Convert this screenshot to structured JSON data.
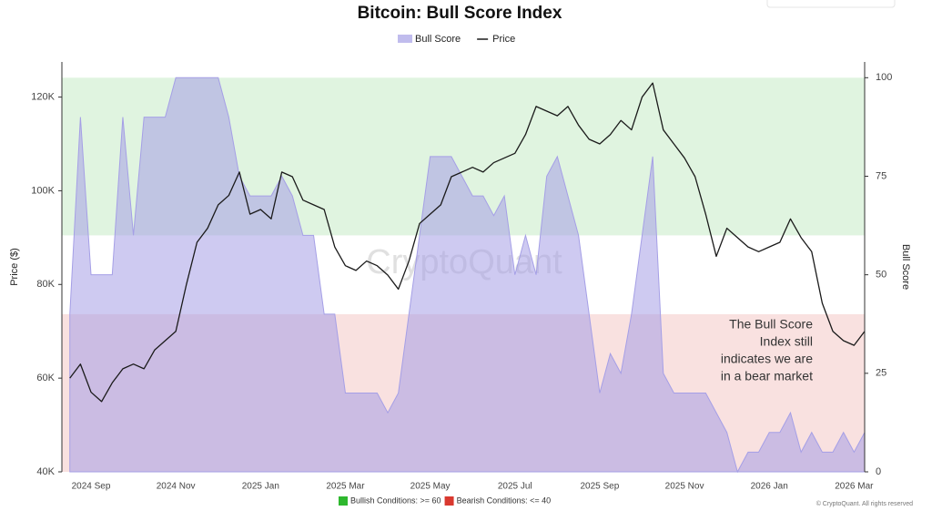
{
  "chart_data": {
    "type": "combo",
    "title": "Bitcoin: Bull Score Index",
    "ylabel": "Price ($)",
    "y2label": "Bull Score",
    "watermark": "CryptoQuant",
    "credit": "© CryptoQuant. All rights reserved",
    "annotation": [
      "The Bull Score",
      "Index still",
      "indicates we are",
      "in a bear market"
    ],
    "categories": [
      null,
      null,
      "2024 Sep",
      null,
      null,
      null,
      null,
      null,
      null,
      null,
      "2024 Nov",
      null,
      null,
      null,
      null,
      null,
      null,
      null,
      "2025 Jan",
      null,
      null,
      null,
      null,
      null,
      null,
      null,
      "2025 Mar",
      null,
      null,
      null,
      null,
      null,
      null,
      null,
      "2025 May",
      null,
      null,
      null,
      null,
      null,
      null,
      null,
      "2025 Jul",
      null,
      null,
      null,
      null,
      null,
      null,
      null,
      "2025 Sep",
      null,
      null,
      null,
      null,
      null,
      null,
      null,
      "2025 Nov",
      null,
      null,
      null,
      null,
      null,
      null,
      null,
      "2026 Jan",
      null,
      null,
      null,
      null,
      null,
      null,
      null,
      "2026 Mar",
      null
    ],
    "series": [
      {
        "name": "Bull Score",
        "type": "area",
        "axis": "y2",
        "color": "#a59fe6",
        "values": [
          40,
          90,
          50,
          50,
          50,
          90,
          60,
          90,
          90,
          90,
          100,
          100,
          100,
          100,
          100,
          90,
          75,
          70,
          70,
          70,
          75,
          70,
          60,
          60,
          40,
          40,
          20,
          20,
          20,
          20,
          15,
          20,
          40,
          60,
          80,
          80,
          80,
          75,
          70,
          70,
          65,
          70,
          50,
          60,
          50,
          75,
          80,
          70,
          60,
          40,
          20,
          30,
          25,
          40,
          60,
          80,
          25,
          20,
          20,
          20,
          20,
          15,
          10,
          0,
          5,
          5,
          10,
          10,
          15,
          5,
          10,
          5,
          5,
          10,
          5,
          10
        ]
      },
      {
        "name": "Price",
        "type": "line",
        "color": "#1a1a1a",
        "values": [
          60000,
          63000,
          57000,
          55000,
          59000,
          62000,
          63000,
          62000,
          66000,
          68000,
          70000,
          80000,
          89000,
          92000,
          97000,
          99000,
          104000,
          95000,
          96000,
          94000,
          104000,
          103000,
          98000,
          97000,
          96000,
          88000,
          84000,
          83000,
          85000,
          84000,
          82000,
          79000,
          85000,
          93000,
          95000,
          97000,
          103000,
          104000,
          105000,
          104000,
          106000,
          107000,
          108000,
          112000,
          118000,
          117000,
          116000,
          118000,
          114000,
          111000,
          110000,
          112000,
          115000,
          113000,
          120000,
          123000,
          113000,
          110000,
          107000,
          103000,
          95000,
          86000,
          92000,
          90000,
          88000,
          87000,
          88000,
          89000,
          94000,
          90000,
          87000,
          76000,
          70000,
          68000,
          67000,
          70000
        ]
      }
    ],
    "zones": [
      {
        "label": "Bullish Conditions: >= 60",
        "min": 60,
        "max": 100,
        "color": "#2eb82e"
      },
      {
        "label": "Bearish Conditions: <= 40",
        "min": 0,
        "max": 40,
        "color": "#d9392f"
      }
    ],
    "ylim": [
      40000,
      127500
    ],
    "yticks": [
      {
        "value": 40000,
        "label": "40K"
      },
      {
        "value": 60000,
        "label": "60K"
      },
      {
        "value": 80000,
        "label": "80K"
      },
      {
        "value": 100000,
        "label": "100K"
      },
      {
        "value": 120000,
        "label": "120K"
      }
    ],
    "y2lim": [
      0,
      104
    ],
    "y2ticks": [
      0,
      25,
      50,
      75,
      100
    ]
  }
}
